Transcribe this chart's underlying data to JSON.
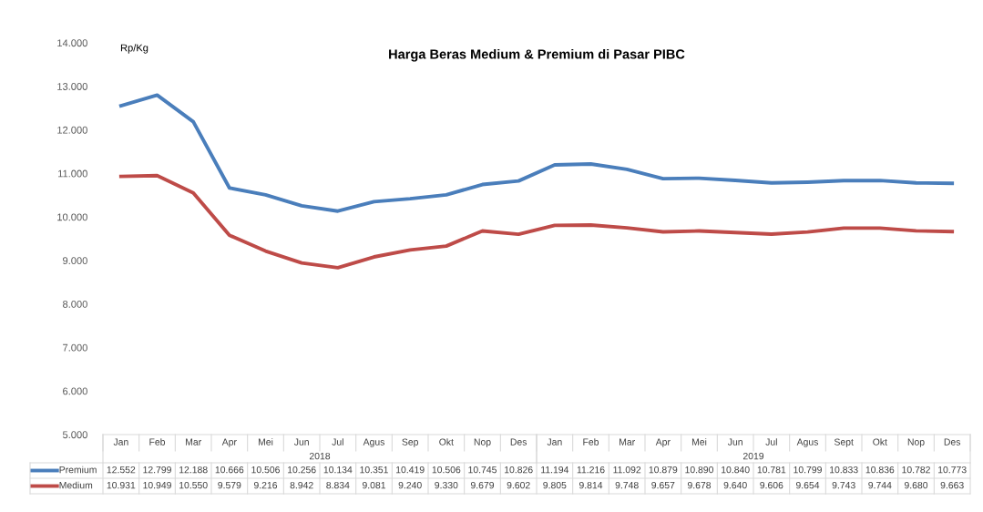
{
  "chart_data": {
    "type": "line",
    "title": "Harga Beras Medium & Premium di Pasar PIBC",
    "ylabel": "Rp/Kg",
    "categories": [
      "Jan",
      "Feb",
      "Mar",
      "Apr",
      "Mei",
      "Jun",
      "Jul",
      "Agus",
      "Sep",
      "Okt",
      "Nop",
      "Des",
      "Jan",
      "Feb",
      "Mar",
      "Apr",
      "Mei",
      "Jun",
      "Jul",
      "Agus",
      "Sept",
      "Okt",
      "Nop",
      "Des"
    ],
    "annotations": [
      "2018",
      "2019"
    ],
    "ylim": [
      5000,
      14000
    ],
    "yticks": [
      {
        "value": 5000,
        "label": "5.000"
      },
      {
        "value": 6000,
        "label": "6.000"
      },
      {
        "value": 7000,
        "label": "7.000"
      },
      {
        "value": 8000,
        "label": "8.000"
      },
      {
        "value": 9000,
        "label": "9.000"
      },
      {
        "value": 10000,
        "label": "10.000"
      },
      {
        "value": 11000,
        "label": "11.000"
      },
      {
        "value": 12000,
        "label": "12.000"
      },
      {
        "value": 13000,
        "label": "13.000"
      },
      {
        "value": 14000,
        "label": "14.000"
      }
    ],
    "grid": false,
    "legend": "bottom",
    "marker": "none",
    "line_style": "solid",
    "series": [
      {
        "name": "Premium",
        "color": "#4a7ebb",
        "values": [
          12552,
          12799,
          12188,
          10666,
          10506,
          10256,
          10134,
          10351,
          10419,
          10506,
          10745,
          10826,
          11194,
          11216,
          11092,
          10879,
          10890,
          10840,
          10781,
          10799,
          10833,
          10836,
          10782,
          10773
        ],
        "value_labels": [
          "12.552",
          "12.799",
          "12.188",
          "10.666",
          "10.506",
          "10.256",
          "10.134",
          "10.351",
          "10.419",
          "10.506",
          "10.745",
          "10.826",
          "11.194",
          "11.216",
          "11.092",
          "10.879",
          "10.890",
          "10.840",
          "10.781",
          "10.799",
          "10.833",
          "10.836",
          "10.782",
          "10.773"
        ]
      },
      {
        "name": "Medium",
        "color": "#be4b48",
        "values": [
          10931,
          10949,
          10550,
          9579,
          9216,
          8942,
          8834,
          9081,
          9240,
          9330,
          9679,
          9602,
          9805,
          9814,
          9748,
          9657,
          9678,
          9640,
          9606,
          9654,
          9743,
          9744,
          9680,
          9663
        ],
        "value_labels": [
          "10.931",
          "10.949",
          "10.550",
          "9.579",
          "9.216",
          "8.942",
          "8.834",
          "9.081",
          "9.240",
          "9.330",
          "9.679",
          "9.602",
          "9.805",
          "9.814",
          "9.748",
          "9.657",
          "9.678",
          "9.640",
          "9.606",
          "9.654",
          "9.743",
          "9.744",
          "9.680",
          "9.663"
        ]
      }
    ]
  }
}
